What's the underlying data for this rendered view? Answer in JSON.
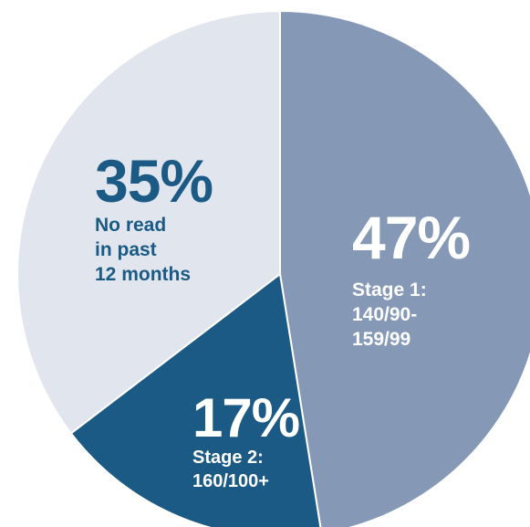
{
  "chart_data": {
    "type": "pie",
    "title": "",
    "start": "12 o'clock",
    "direction": "clockwise",
    "slices": [
      {
        "percent_label": "47%",
        "value": 47,
        "label_lines": [
          "Stage 1:",
          "140/90-",
          "159/99"
        ],
        "color": "#8599B6",
        "text_color": "#FFFFFF"
      },
      {
        "percent_label": "17%",
        "value": 17,
        "label_lines": [
          "Stage 2:",
          "160/100+"
        ],
        "color": "#1B5A84",
        "text_color": "#FFFFFF"
      },
      {
        "percent_label": "35%",
        "value": 35,
        "label_lines": [
          "No read",
          "in past",
          "12 months"
        ],
        "color": "#E1E6EE",
        "text_color": "#1B5A84"
      }
    ]
  }
}
